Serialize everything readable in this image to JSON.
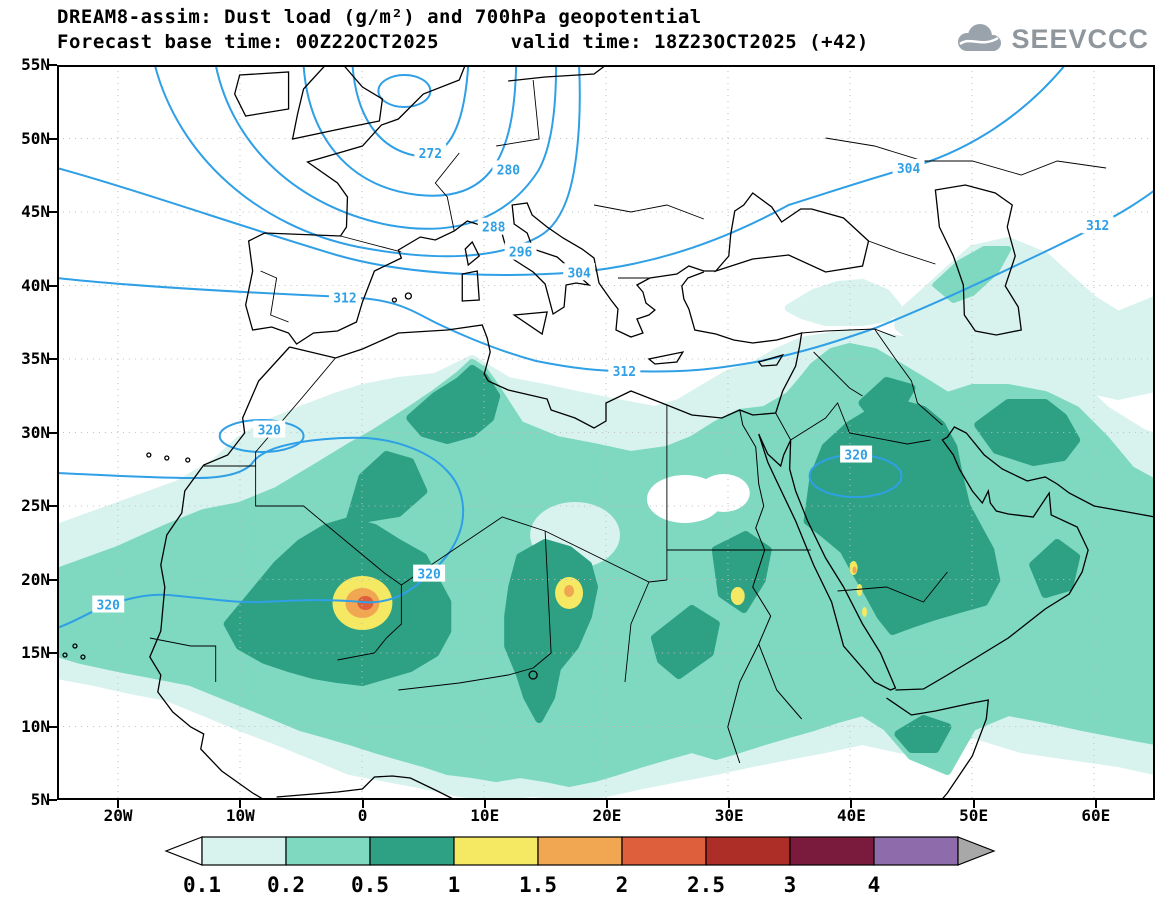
{
  "header": {
    "title_line1": "DREAM8-assim: Dust load (g/m²) and 700hPa geopotential",
    "title_line2": "Forecast base time: 00Z22OCT2025      valid time: 18Z23OCT2025 (+42)"
  },
  "logo": {
    "text": "SEEVCCC"
  },
  "axes": {
    "lat_labels": [
      "55N",
      "50N",
      "45N",
      "40N",
      "35N",
      "30N",
      "25N",
      "20N",
      "15N",
      "10N",
      "5N"
    ],
    "lon_labels": [
      "20W",
      "10W",
      "0",
      "10E",
      "20E",
      "30E",
      "40E",
      "50E",
      "60E"
    ]
  },
  "palette": {
    "contour": "#2f9fe6",
    "coast": "#000000",
    "grid": "#bfbfbf",
    "dust": {
      "under": "#ffffff",
      "d01": "#d8f3ee",
      "d02": "#7ed9c0",
      "d05": "#2ea185",
      "d1": "#f5e863",
      "d15": "#f1a752",
      "d2": "#dd5f3b",
      "d25": "#ad2e26",
      "d3": "#7a1b3d",
      "d4": "#8e6cab",
      "over": "#a8a8a8"
    }
  },
  "colorbar": {
    "labels": [
      "0.1",
      "0.2",
      "0.5",
      "1",
      "1.5",
      "2",
      "2.5",
      "3",
      "4"
    ],
    "colors": [
      "#d8f3ee",
      "#7ed9c0",
      "#2ea185",
      "#f5e863",
      "#f1a752",
      "#dd5f3b",
      "#ad2e26",
      "#7a1b3d",
      "#8e6cab"
    ]
  },
  "map": {
    "contour_labels": [
      {
        "text": "272",
        "lon": 5.6,
        "lat": 49.0
      },
      {
        "text": "280",
        "lon": 12.0,
        "lat": 47.9
      },
      {
        "text": "288",
        "lon": 10.8,
        "lat": 44.0
      },
      {
        "text": "296",
        "lon": 13.0,
        "lat": 42.3
      },
      {
        "text": "304",
        "lon": 17.8,
        "lat": 40.9
      },
      {
        "text": "304",
        "lon": 44.8,
        "lat": 48.0
      },
      {
        "text": "312",
        "lon": -1.4,
        "lat": 39.2
      },
      {
        "text": "312",
        "lon": 21.5,
        "lat": 34.2
      },
      {
        "text": "312",
        "lon": 60.3,
        "lat": 44.1
      },
      {
        "text": "320",
        "lon": -20.8,
        "lat": 18.3
      },
      {
        "text": "320",
        "lon": 5.5,
        "lat": 20.4
      },
      {
        "text": "320",
        "lon": -7.6,
        "lat": 30.2
      },
      {
        "text": "320",
        "lon": 40.5,
        "lat": 28.5
      }
    ]
  },
  "chart_data": {
    "type": "heatmap",
    "title": "DREAM8-assim: Dust load (g/m²) and 700hPa geopotential",
    "subtitle": "Forecast base time: 00Z22OCT2025      valid time: 18Z23OCT2025 (+42)",
    "field": "dust load",
    "units": "g/m²",
    "overlay_field": "700hPa geopotential",
    "x_axis": {
      "label": "longitude",
      "range_deg": [
        -25,
        65
      ],
      "tick_labels": [
        "20W",
        "10W",
        "0",
        "10E",
        "20E",
        "30E",
        "40E",
        "50E",
        "60E"
      ]
    },
    "y_axis": {
      "label": "latitude",
      "range_deg": [
        5,
        55
      ],
      "tick_labels": [
        "5N",
        "10N",
        "15N",
        "20N",
        "25N",
        "30N",
        "35N",
        "40N",
        "45N",
        "50N",
        "55N"
      ]
    },
    "grid": "dotted graticule, 10 deg lon x 5 deg lat",
    "legend_position": "bottom colorbar with arrow ends",
    "shade_levels": [
      0.1,
      0.2,
      0.5,
      1,
      1.5,
      2,
      2.5,
      3,
      4
    ],
    "shade_colors": [
      "#d8f3ee",
      "#7ed9c0",
      "#2ea185",
      "#f5e863",
      "#f1a752",
      "#dd5f3b",
      "#ad2e26",
      "#7a1b3d",
      "#8e6cab"
    ],
    "contour_levels_shown": [
      272,
      280,
      288,
      296,
      304,
      312,
      320
    ],
    "dust_maxima": [
      {
        "lon": 0.3,
        "lat": 18.5,
        "peak_value_range": "2-2.5"
      },
      {
        "lon": 17.0,
        "lat": 19.0,
        "peak_value_range": "1.5-2"
      },
      {
        "lon": 30.8,
        "lat": 19.0,
        "peak_value_range": "1-1.5"
      },
      {
        "lon": 40.5,
        "lat": 20.0,
        "peak_value_range": "1-1.5"
      }
    ],
    "dust_belt_extent": "continuous 0.1-1 g/m² belt ~5N-33N from the Atlantic across the Sahara, Sahel and Arabian Peninsula, plus patches over E Turkey / Caucasus / Caspian",
    "geopotential_pattern": "trough (272-296) over W/C Europe; 304/312 zonal across Mediterranean; 320 across West Africa ~18-20N with small closed loops over Morocco and central Saudi Arabia"
  }
}
